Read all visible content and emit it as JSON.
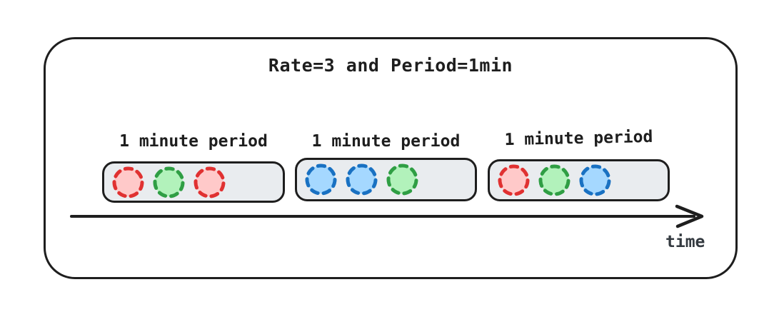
{
  "title": "Rate=3 and Period=1min",
  "axis_label": "time",
  "periods": [
    {
      "label": "1 minute period",
      "requests": [
        "red",
        "green",
        "red"
      ]
    },
    {
      "label": "1 minute period",
      "requests": [
        "blue",
        "blue",
        "green"
      ]
    },
    {
      "label": "1 minute period",
      "requests": [
        "red",
        "green",
        "blue"
      ]
    }
  ],
  "colors": {
    "red": {
      "stroke": "#e03131",
      "fill": "#ffc9c9"
    },
    "green": {
      "stroke": "#2f9e44",
      "fill": "#b2f2bb"
    },
    "blue": {
      "stroke": "#1971c2",
      "fill": "#a5d8ff"
    },
    "box_fill": "#e9ecef",
    "ink": "#1e1e1e"
  }
}
